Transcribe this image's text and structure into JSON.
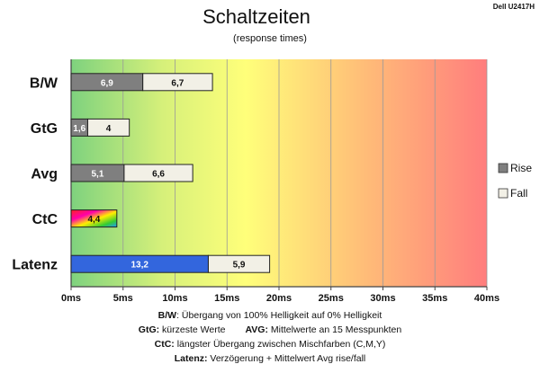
{
  "monitor_label": "Dell U2417H",
  "chart_data": {
    "type": "bar",
    "orientation": "horizontal",
    "stacked": true,
    "title": "Schaltzeiten",
    "subtitle": "(response times)",
    "categories": [
      "B/W",
      "GtG",
      "Avg",
      "CtC",
      "Latenz"
    ],
    "series": [
      {
        "name": "Rise",
        "values": [
          6.9,
          1.6,
          5.1,
          4.4,
          13.2
        ],
        "labels": [
          "6,9",
          "1,6",
          "5,1",
          "4,4",
          "13,2"
        ]
      },
      {
        "name": "Fall",
        "values": [
          6.7,
          4,
          6.6,
          null,
          5.9
        ],
        "labels": [
          "6,7",
          "4",
          "6,6",
          "",
          "5,9"
        ]
      }
    ],
    "xlim": [
      0,
      40
    ],
    "x_ticks": [
      "0ms",
      "5ms",
      "10ms",
      "15ms",
      "20ms",
      "25ms",
      "30ms",
      "35ms",
      "40ms"
    ],
    "grid": true,
    "legend_position": "right",
    "colors": {
      "rise": "#7f7f7f",
      "fall": "#f2f0e6",
      "latency_rise": "#3366dd",
      "background_gradient": [
        "#7ed27e",
        "#ffff7a",
        "#ff7d7d"
      ]
    }
  },
  "notes": {
    "line1_key": "B/W",
    "line1_text": ":  Übergang von 100% Helligkeit auf 0% Helligkeit",
    "line2a_key": "GtG:",
    "line2a_text": " kürzeste  Werte",
    "line2b_key": "AVG:",
    "line2b_text": " Mittelwerte  an 15 Messpunkten",
    "line3_key": "CtC:",
    "line3_text": " längster Übergang  zwischen Mischfarben (C,M,Y)",
    "line4_key": "Latenz:",
    "line4_text": " Verzögerung  + Mittelwert Avg rise/fall"
  }
}
